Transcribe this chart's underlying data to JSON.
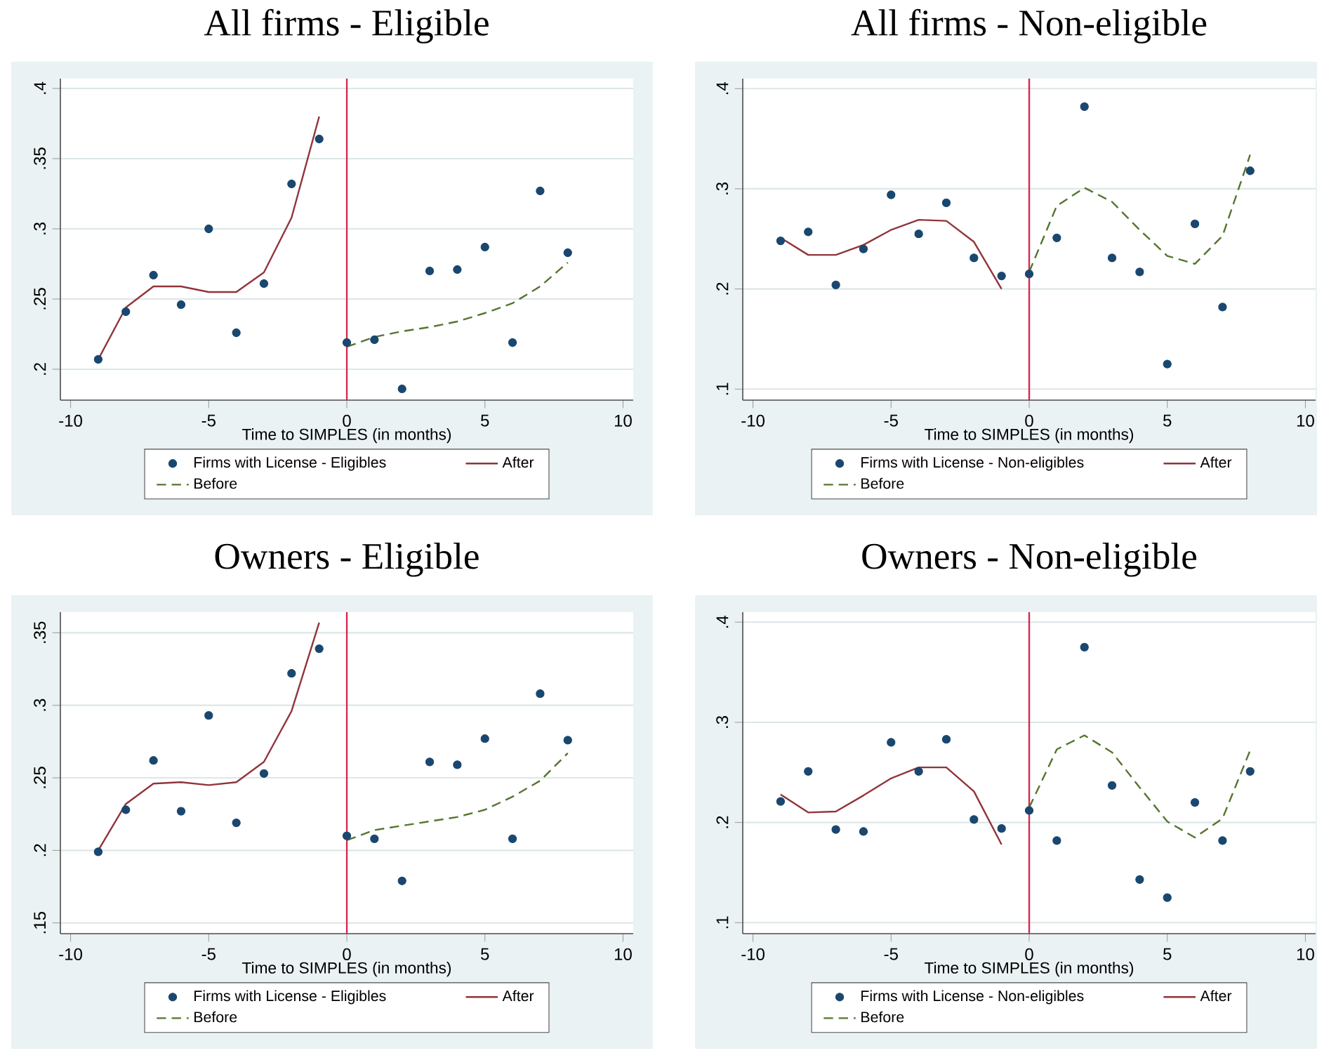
{
  "chart_data": [
    {
      "type": "scatter",
      "title": "All firms - Eligible",
      "xlabel": "Time to SIMPLES (in months)",
      "xlim": [
        -10.37,
        10.37
      ],
      "ylim": [
        0.178,
        0.407
      ],
      "xticks": [
        -10,
        -5,
        0,
        5,
        10
      ],
      "yticks": [
        {
          "value": 0.2,
          "label": ".2"
        },
        {
          "value": 0.25,
          "label": ".25"
        },
        {
          "value": 0.3,
          "label": ".3"
        },
        {
          "value": 0.35,
          "label": ".35"
        },
        {
          "value": 0.4,
          "label": ".4"
        }
      ],
      "grid": "y",
      "legend": "bottom",
      "ref_lines": [
        {
          "axis": "x",
          "value": 0,
          "color": "#d8254f"
        }
      ],
      "series": [
        {
          "name": "Firms with License - Eligibles",
          "type": "scatter",
          "marker": "circle",
          "color": "#1a476f",
          "x": [
            -9,
            -8,
            -7,
            -6,
            -5,
            -4,
            -3,
            -2,
            -1,
            0,
            1,
            2,
            3,
            4,
            5,
            6,
            7,
            8
          ],
          "values": [
            0.207,
            0.241,
            0.267,
            0.246,
            0.3,
            0.226,
            0.261,
            0.332,
            0.364,
            0.219,
            0.221,
            0.186,
            0.27,
            0.271,
            0.287,
            0.219,
            0.327,
            0.283
          ]
        },
        {
          "name": "After",
          "type": "line",
          "line_style": "solid",
          "color": "#90353b",
          "x": [
            -9,
            -8,
            -7,
            -6,
            -5,
            -4,
            -3,
            -2,
            -1
          ],
          "values": [
            0.207,
            0.244,
            0.259,
            0.259,
            0.255,
            0.255,
            0.269,
            0.308,
            0.38
          ]
        },
        {
          "name": "Before",
          "type": "line",
          "line_style": "dashed",
          "color": "#55752f",
          "x": [
            0,
            1,
            2,
            3,
            4,
            5,
            6,
            7,
            8
          ],
          "values": [
            0.216,
            0.223,
            0.227,
            0.23,
            0.234,
            0.24,
            0.247,
            0.259,
            0.276
          ]
        }
      ]
    },
    {
      "type": "scatter",
      "title": "All firms - Non-eligible",
      "xlabel": "Time to SIMPLES (in months)",
      "xlim": [
        -10.37,
        10.37
      ],
      "ylim": [
        0.089,
        0.41
      ],
      "xticks": [
        -10,
        -5,
        0,
        5,
        10
      ],
      "yticks": [
        {
          "value": 0.1,
          "label": ".1"
        },
        {
          "value": 0.2,
          "label": ".2"
        },
        {
          "value": 0.3,
          "label": ".3"
        },
        {
          "value": 0.4,
          "label": ".4"
        }
      ],
      "grid": "y",
      "legend": "bottom",
      "ref_lines": [
        {
          "axis": "x",
          "value": 0,
          "color": "#d8254f"
        }
      ],
      "series": [
        {
          "name": "Firms with License - Non-eligibles",
          "type": "scatter",
          "marker": "circle",
          "color": "#1a476f",
          "x": [
            -9,
            -8,
            -7,
            -6,
            -5,
            -4,
            -3,
            -2,
            -1,
            0,
            1,
            2,
            3,
            4,
            5,
            6,
            7,
            8
          ],
          "values": [
            0.248,
            0.257,
            0.204,
            0.24,
            0.294,
            0.255,
            0.286,
            0.231,
            0.213,
            0.215,
            0.251,
            0.382,
            0.231,
            0.217,
            0.125,
            0.265,
            0.182,
            0.318
          ]
        },
        {
          "name": "After",
          "type": "line",
          "line_style": "solid",
          "color": "#90353b",
          "x": [
            -9,
            -8,
            -7,
            -6,
            -5,
            -4,
            -3,
            -2,
            -1
          ],
          "values": [
            0.251,
            0.234,
            0.234,
            0.244,
            0.259,
            0.269,
            0.268,
            0.247,
            0.2
          ]
        },
        {
          "name": "Before",
          "type": "line",
          "line_style": "dashed",
          "color": "#55752f",
          "x": [
            0,
            1,
            2,
            3,
            4,
            5,
            6,
            7,
            8
          ],
          "values": [
            0.217,
            0.283,
            0.301,
            0.287,
            0.259,
            0.233,
            0.225,
            0.253,
            0.334
          ]
        }
      ]
    },
    {
      "type": "scatter",
      "title": "Owners - Eligible",
      "xlabel": "Time to SIMPLES (in months)",
      "xlim": [
        -10.37,
        10.37
      ],
      "ylim": [
        0.1426,
        0.3642
      ],
      "xticks": [
        -10,
        -5,
        0,
        5,
        10
      ],
      "yticks": [
        {
          "value": 0.15,
          "label": ".15"
        },
        {
          "value": 0.2,
          "label": ".2"
        },
        {
          "value": 0.25,
          "label": ".25"
        },
        {
          "value": 0.3,
          "label": ".3"
        },
        {
          "value": 0.35,
          "label": ".35"
        }
      ],
      "grid": "y",
      "legend": "bottom",
      "ref_lines": [
        {
          "axis": "x",
          "value": 0,
          "color": "#d8254f"
        }
      ],
      "series": [
        {
          "name": "Firms with License - Eligibles",
          "type": "scatter",
          "marker": "circle",
          "color": "#1a476f",
          "x": [
            -9,
            -8,
            -7,
            -6,
            -5,
            -4,
            -3,
            -2,
            -1,
            0,
            1,
            2,
            3,
            4,
            5,
            6,
            7,
            8
          ],
          "values": [
            0.199,
            0.228,
            0.262,
            0.227,
            0.293,
            0.219,
            0.253,
            0.322,
            0.339,
            0.21,
            0.208,
            0.179,
            0.261,
            0.259,
            0.277,
            0.208,
            0.308,
            0.276
          ]
        },
        {
          "name": "After",
          "type": "line",
          "line_style": "solid",
          "color": "#90353b",
          "x": [
            -9,
            -8,
            -7,
            -6,
            -5,
            -4,
            -3,
            -2,
            -1
          ],
          "values": [
            0.2,
            0.232,
            0.246,
            0.247,
            0.245,
            0.247,
            0.261,
            0.296,
            0.357
          ]
        },
        {
          "name": "Before",
          "type": "line",
          "line_style": "dashed",
          "color": "#55752f",
          "x": [
            0,
            1,
            2,
            3,
            4,
            5,
            6,
            7,
            8
          ],
          "values": [
            0.207,
            0.214,
            0.217,
            0.22,
            0.223,
            0.228,
            0.237,
            0.248,
            0.267
          ]
        }
      ]
    },
    {
      "type": "scatter",
      "title": "Owners - Non-eligible",
      "xlabel": "Time to SIMPLES (in months)",
      "xlim": [
        -10.37,
        10.37
      ],
      "ylim": [
        0.089,
        0.41
      ],
      "xticks": [
        -10,
        -5,
        0,
        5,
        10
      ],
      "yticks": [
        {
          "value": 0.1,
          "label": ".1"
        },
        {
          "value": 0.2,
          "label": ".2"
        },
        {
          "value": 0.3,
          "label": ".3"
        },
        {
          "value": 0.4,
          "label": ".4"
        }
      ],
      "grid": "y",
      "legend": "bottom",
      "ref_lines": [
        {
          "axis": "x",
          "value": 0,
          "color": "#d8254f"
        }
      ],
      "series": [
        {
          "name": "Firms with License - Non-eligibles",
          "type": "scatter",
          "marker": "circle",
          "color": "#1a476f",
          "x": [
            -9,
            -8,
            -7,
            -6,
            -5,
            -4,
            -3,
            -2,
            -1,
            0,
            1,
            2,
            3,
            4,
            5,
            6,
            7,
            8
          ],
          "values": [
            0.221,
            0.251,
            0.193,
            0.191,
            0.28,
            0.251,
            0.283,
            0.203,
            0.194,
            0.212,
            0.182,
            0.375,
            0.237,
            0.143,
            0.125,
            0.22,
            0.182,
            0.251
          ]
        },
        {
          "name": "After",
          "type": "line",
          "line_style": "solid",
          "color": "#90353b",
          "x": [
            -9,
            -8,
            -7,
            -6,
            -5,
            -4,
            -3,
            -2,
            -1
          ],
          "values": [
            0.228,
            0.21,
            0.211,
            0.227,
            0.244,
            0.255,
            0.255,
            0.231,
            0.178
          ]
        },
        {
          "name": "Before",
          "type": "line",
          "line_style": "dashed",
          "color": "#55752f",
          "x": [
            0,
            1,
            2,
            3,
            4,
            5,
            6,
            7,
            8
          ],
          "values": [
            0.215,
            0.273,
            0.287,
            0.27,
            0.235,
            0.201,
            0.185,
            0.204,
            0.272
          ]
        }
      ]
    }
  ]
}
